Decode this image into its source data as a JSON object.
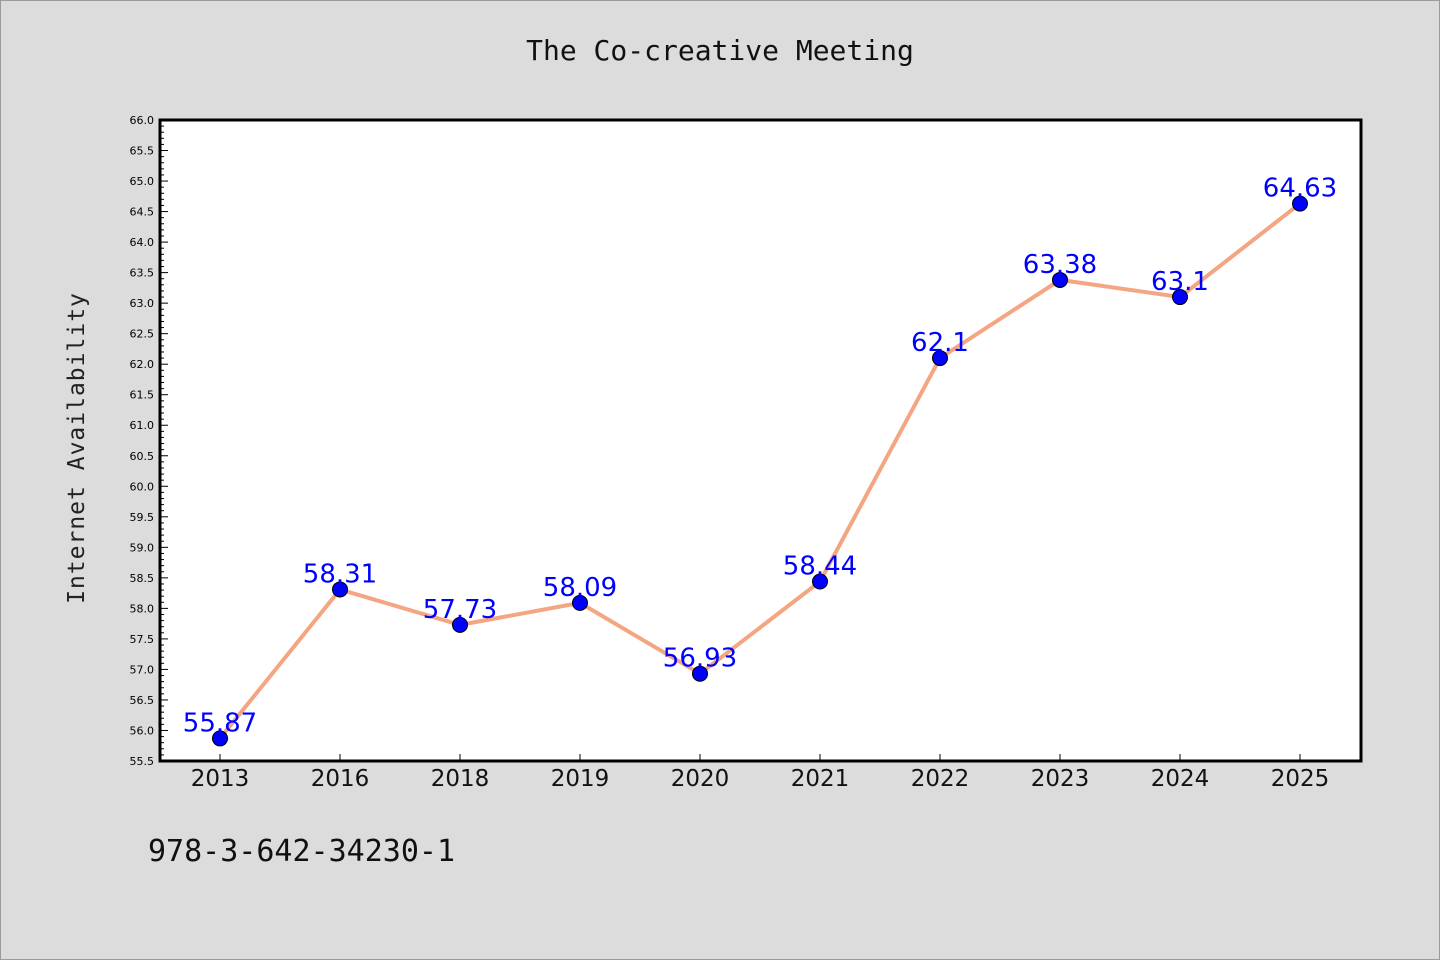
{
  "chart_data": {
    "type": "line",
    "title": "The Co-creative Meeting",
    "xlabel": "",
    "ylabel": "Internet Availability",
    "categories": [
      "2013",
      "2016",
      "2018",
      "2019",
      "2020",
      "2021",
      "2022",
      "2023",
      "2024",
      "2025"
    ],
    "series": [
      {
        "values": [
          55.87,
          58.31,
          57.73,
          58.09,
          56.93,
          58.44,
          62.1,
          63.38,
          63.1,
          64.63
        ],
        "labels": [
          "55.87",
          "58.31",
          "57.73",
          "58.09",
          "56.93",
          "58.44",
          "62.1",
          "63.38",
          "63.1",
          "64.63"
        ],
        "line_color": "#f4a582",
        "marker_color": "#0000ff"
      }
    ],
    "ylim": [
      55.5,
      66.0
    ],
    "yticks": [
      "55.5",
      "56.0",
      "56.5",
      "57.0",
      "57.5",
      "58.0",
      "58.5",
      "59.0",
      "59.5",
      "60.0",
      "60.5",
      "61.0",
      "61.5",
      "62.0",
      "62.5",
      "63.0",
      "63.5",
      "64.0",
      "64.5",
      "65.0",
      "65.5",
      "66.0"
    ],
    "grid": false,
    "label_color": "#0000ff"
  },
  "footer": {
    "code": "978-3-642-34230-1"
  }
}
